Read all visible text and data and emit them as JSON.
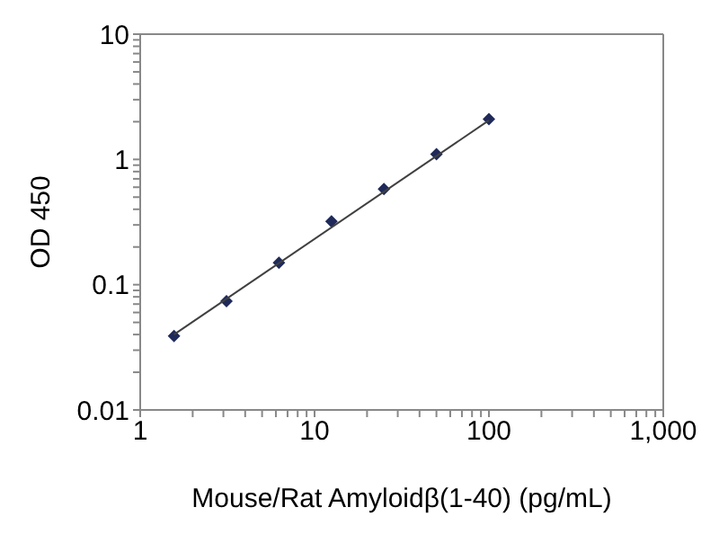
{
  "chart_data": {
    "type": "scatter",
    "xlabel": "Mouse/Rat Amyloidβ(1-40)  (pg/mL)",
    "ylabel": "OD 450",
    "log": "xy",
    "marker": "diamond",
    "xlim": [
      1,
      1000
    ],
    "ylim": [
      0.01,
      10
    ],
    "xticks": [
      1,
      {
        "value": 2,
        "label": null
      },
      {
        "value": 3,
        "label": null
      },
      {
        "value": 4,
        "label": null
      },
      {
        "value": 5,
        "label": null
      },
      {
        "value": 6,
        "label": null
      },
      {
        "value": 7,
        "label": null
      },
      {
        "value": 8,
        "label": null
      },
      {
        "value": 9,
        "label": null
      },
      10,
      {
        "value": 20,
        "label": null
      },
      {
        "value": 30,
        "label": null
      },
      {
        "value": 40,
        "label": null
      },
      {
        "value": 50,
        "label": null
      },
      {
        "value": 60,
        "label": null
      },
      {
        "value": 70,
        "label": null
      },
      {
        "value": 80,
        "label": null
      },
      {
        "value": 90,
        "label": null
      },
      100,
      {
        "value": 200,
        "label": null
      },
      {
        "value": 300,
        "label": null
      },
      {
        "value": 400,
        "label": null
      },
      {
        "value": 500,
        "label": null
      },
      {
        "value": 600,
        "label": null
      },
      {
        "value": 700,
        "label": null
      },
      {
        "value": 800,
        "label": null
      },
      {
        "value": 900,
        "label": null
      },
      {
        "value": 1000,
        "label": "1,000"
      }
    ],
    "yticks": [
      0.01,
      {
        "value": 0.02,
        "label": null
      },
      {
        "value": 0.03,
        "label": null
      },
      {
        "value": 0.04,
        "label": null
      },
      {
        "value": 0.05,
        "label": null
      },
      {
        "value": 0.06,
        "label": null
      },
      {
        "value": 0.07,
        "label": null
      },
      {
        "value": 0.08,
        "label": null
      },
      {
        "value": 0.09,
        "label": null
      },
      0.1,
      {
        "value": 0.2,
        "label": null
      },
      {
        "value": 0.3,
        "label": null
      },
      {
        "value": 0.4,
        "label": null
      },
      {
        "value": 0.5,
        "label": null
      },
      {
        "value": 0.6,
        "label": null
      },
      {
        "value": 0.7,
        "label": null
      },
      {
        "value": 0.8,
        "label": null
      },
      {
        "value": 0.9,
        "label": null
      },
      1,
      {
        "value": 2,
        "label": null
      },
      {
        "value": 3,
        "label": null
      },
      {
        "value": 4,
        "label": null
      },
      {
        "value": 5,
        "label": null
      },
      {
        "value": 6,
        "label": null
      },
      {
        "value": 7,
        "label": null
      },
      {
        "value": 8,
        "label": null
      },
      {
        "value": 9,
        "label": null
      },
      10
    ],
    "series": [
      {
        "color": "#1f2a5a",
        "x": [
          1.5625,
          3.125,
          6.25,
          12.5,
          25,
          50,
          100
        ],
        "values": [
          0.039,
          0.074,
          0.15,
          0.32,
          0.58,
          1.1,
          2.1
        ]
      },
      {
        "type": "line",
        "color": "#404040",
        "marker": "none",
        "line_style": "solid",
        "x": [
          1.5625,
          100
        ],
        "values": [
          0.04,
          2.05
        ]
      }
    ]
  }
}
